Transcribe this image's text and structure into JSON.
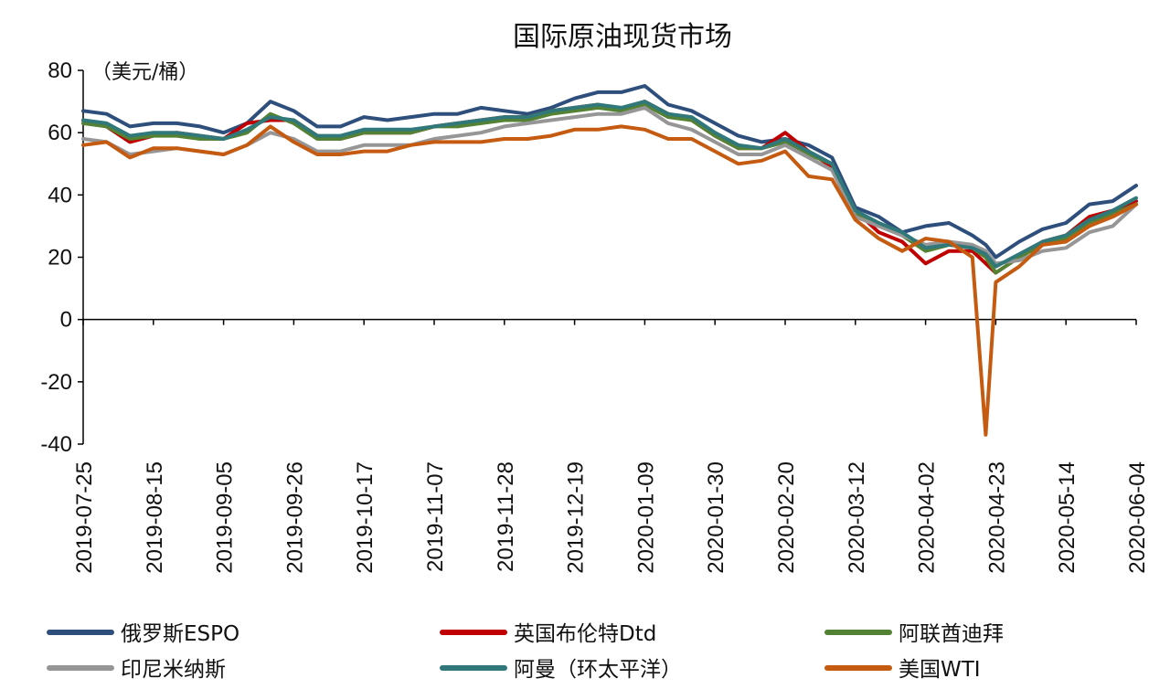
{
  "chart_data": {
    "type": "line",
    "title": "国际原油现货市场",
    "ylabel": "（美元/桶）",
    "ylim": [
      -40,
      80
    ],
    "yticks": [
      80,
      60,
      40,
      20,
      0,
      -20,
      -40
    ],
    "grid": false,
    "legend_position": "bottom",
    "x": [
      "2019-07-25",
      "2019-08-01",
      "2019-08-08",
      "2019-08-15",
      "2019-08-22",
      "2019-08-29",
      "2019-09-05",
      "2019-09-12",
      "2019-09-19",
      "2019-09-26",
      "2019-10-03",
      "2019-10-10",
      "2019-10-17",
      "2019-10-24",
      "2019-10-31",
      "2019-11-07",
      "2019-11-14",
      "2019-11-21",
      "2019-11-28",
      "2019-12-05",
      "2019-12-12",
      "2019-12-19",
      "2019-12-26",
      "2020-01-02",
      "2020-01-09",
      "2020-01-16",
      "2020-01-23",
      "2020-01-30",
      "2020-02-06",
      "2020-02-13",
      "2020-02-20",
      "2020-02-27",
      "2020-03-05",
      "2020-03-12",
      "2020-03-19",
      "2020-03-26",
      "2020-04-02",
      "2020-04-09",
      "2020-04-16",
      "2020-04-20",
      "2020-04-23",
      "2020-04-30",
      "2020-05-07",
      "2020-05-14",
      "2020-05-21",
      "2020-05-28",
      "2020-06-04"
    ],
    "xticks": [
      "2019-07-25",
      "2019-08-15",
      "2019-09-05",
      "2019-09-26",
      "2019-10-17",
      "2019-11-07",
      "2019-11-28",
      "2019-12-19",
      "2020-01-09",
      "2020-01-30",
      "2020-02-20",
      "2020-03-12",
      "2020-04-02",
      "2020-04-23",
      "2020-05-14",
      "2020-06-04"
    ],
    "series": [
      {
        "name": "俄罗斯ESPO",
        "color": "#2e4f7c",
        "values": [
          67,
          66,
          62,
          63,
          63,
          62,
          60,
          63,
          70,
          67,
          62,
          62,
          65,
          64,
          65,
          66,
          66,
          68,
          67,
          66,
          68,
          71,
          73,
          73,
          75,
          69,
          67,
          63,
          59,
          57,
          58,
          56,
          52,
          36,
          33,
          28,
          30,
          31,
          27,
          24,
          20,
          25,
          29,
          31,
          37,
          38,
          43
        ]
      },
      {
        "name": "英国布伦特Dtd",
        "color": "#c00000",
        "values": [
          64,
          62,
          57,
          59,
          60,
          59,
          58,
          63,
          64,
          64,
          59,
          58,
          60,
          60,
          60,
          62,
          63,
          64,
          65,
          65,
          67,
          68,
          69,
          67,
          70,
          66,
          64,
          59,
          55,
          55,
          60,
          54,
          49,
          35,
          28,
          25,
          18,
          22,
          22,
          18,
          15,
          20,
          25,
          27,
          33,
          35,
          38
        ]
      },
      {
        "name": "阿联酋迪拜",
        "color": "#548235",
        "values": [
          63,
          62,
          58,
          59,
          59,
          58,
          58,
          60,
          66,
          63,
          58,
          58,
          60,
          60,
          60,
          62,
          62,
          63,
          64,
          64,
          66,
          67,
          68,
          67,
          69,
          65,
          64,
          59,
          55,
          55,
          57,
          53,
          50,
          34,
          30,
          27,
          22,
          24,
          23,
          20,
          15,
          20,
          24,
          26,
          31,
          34,
          37
        ]
      },
      {
        "name": "印尼米纳斯",
        "color": "#969696",
        "values": [
          58,
          57,
          53,
          54,
          55,
          54,
          53,
          56,
          60,
          58,
          54,
          54,
          56,
          56,
          56,
          58,
          59,
          60,
          62,
          63,
          64,
          65,
          66,
          66,
          68,
          63,
          61,
          57,
          53,
          53,
          56,
          52,
          48,
          33,
          30,
          27,
          24,
          25,
          24,
          22,
          18,
          19,
          22,
          23,
          28,
          30,
          37
        ]
      },
      {
        "name": "阿曼（环太平洋）",
        "color": "#31787a",
        "values": [
          64,
          63,
          59,
          60,
          60,
          59,
          58,
          61,
          65,
          64,
          59,
          59,
          61,
          61,
          61,
          62,
          63,
          64,
          65,
          65,
          67,
          68,
          69,
          68,
          70,
          66,
          65,
          60,
          56,
          55,
          58,
          54,
          50,
          35,
          31,
          28,
          23,
          24,
          23,
          21,
          17,
          21,
          25,
          27,
          32,
          35,
          39
        ]
      },
      {
        "name": "美国WTI",
        "color": "#c55a11",
        "values": [
          56,
          57,
          52,
          55,
          55,
          54,
          53,
          56,
          62,
          57,
          53,
          53,
          54,
          54,
          56,
          57,
          57,
          57,
          58,
          58,
          59,
          61,
          61,
          62,
          61,
          58,
          58,
          54,
          50,
          51,
          54,
          46,
          45,
          32,
          26,
          22,
          26,
          25,
          20,
          -37,
          12,
          17,
          24,
          25,
          30,
          33,
          37
        ]
      }
    ]
  }
}
